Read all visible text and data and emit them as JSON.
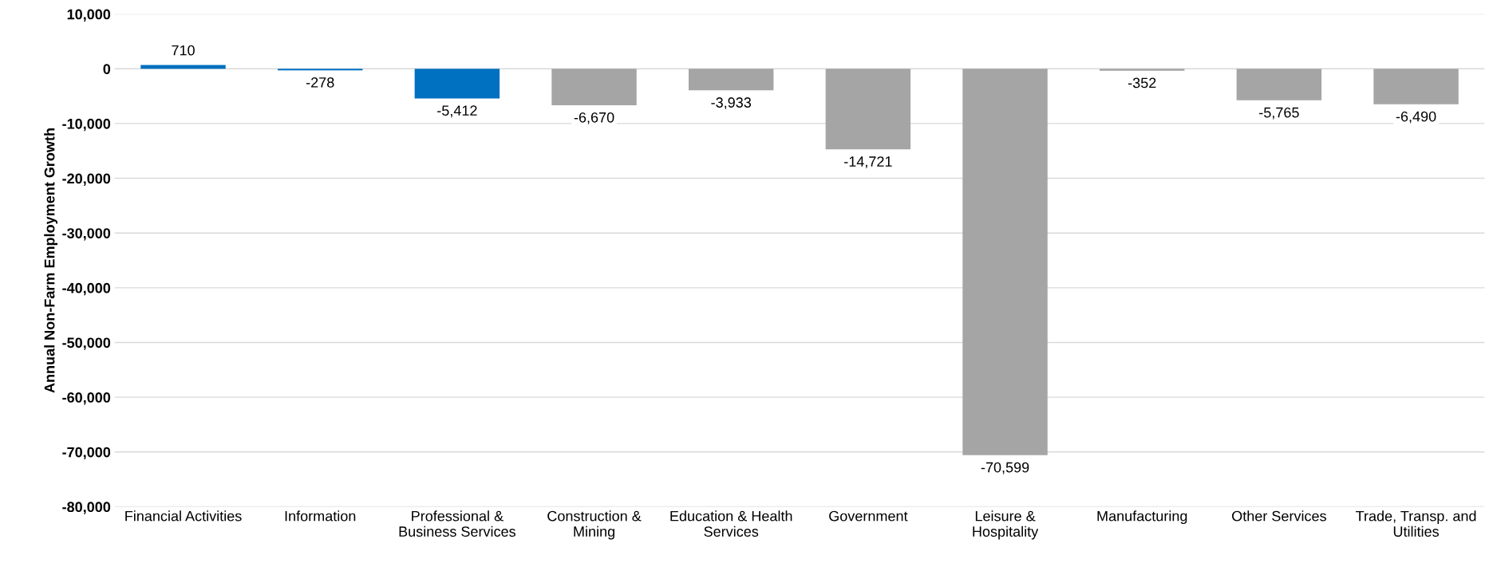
{
  "chart_data": {
    "type": "bar",
    "ylabel": "Annual Non-Farm Employment Growth",
    "categories": [
      "Financial Activities",
      "Information",
      "Professional &\nBusiness Services",
      "Construction &\nMining",
      "Education & Health\nServices",
      "Government",
      "Leisure &\nHospitality",
      "Manufacturing",
      "Other Services",
      "Trade, Transp. and\nUtilities"
    ],
    "values": [
      710,
      -278,
      -5412,
      -6670,
      -3933,
      -14721,
      -70599,
      -352,
      -5765,
      -6490
    ],
    "colors": [
      "#0070c0",
      "#0070c0",
      "#0070c0",
      "#a5a5a5",
      "#a5a5a5",
      "#a5a5a5",
      "#a5a5a5",
      "#a5a5a5",
      "#a5a5a5",
      "#a5a5a5"
    ],
    "value_labels": [
      "710",
      "-278",
      "-5,412",
      "-6,670",
      "-3,933",
      "-14,721",
      "-70,599",
      "-352",
      "-5,765",
      "-6,490"
    ],
    "ylim": [
      -80000,
      10000
    ],
    "yticks": [
      {
        "value": -80000,
        "label": "-80,000"
      },
      {
        "value": -70000,
        "label": "-70,000"
      },
      {
        "value": -60000,
        "label": "-60,000"
      },
      {
        "value": -50000,
        "label": "-50,000"
      },
      {
        "value": -40000,
        "label": "-40,000"
      },
      {
        "value": -30000,
        "label": "-30,000"
      },
      {
        "value": -20000,
        "label": "-20,000"
      },
      {
        "value": -10000,
        "label": "-10,000"
      },
      {
        "value": 0,
        "label": "0"
      },
      {
        "value": 10000,
        "label": "10,000"
      }
    ],
    "grid": "y"
  }
}
